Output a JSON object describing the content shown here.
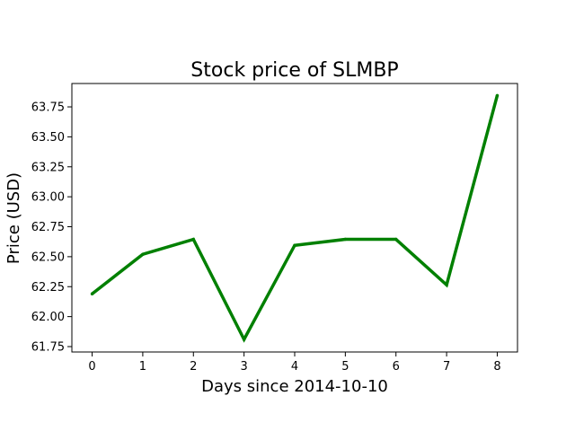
{
  "chart_data": {
    "type": "line",
    "title": "Stock price of SLMBP",
    "xlabel": "Days since 2014-10-10",
    "ylabel": "Price (USD)",
    "x": [
      0,
      1,
      2,
      3,
      4,
      5,
      6,
      7,
      8
    ],
    "series": [
      {
        "values": [
          62.19,
          62.52,
          62.645,
          61.81,
          62.595,
          62.645,
          62.645,
          62.265,
          63.845
        ],
        "color": "#008000"
      }
    ],
    "xticks": [
      "0",
      "1",
      "2",
      "3",
      "4",
      "5",
      "6",
      "7",
      "8"
    ],
    "yticks": [
      "61.75",
      "62.00",
      "62.25",
      "62.50",
      "62.75",
      "63.00",
      "63.25",
      "63.50",
      "63.75"
    ],
    "xlim": [
      -0.4,
      8.4
    ],
    "ylim": [
      61.705,
      63.945
    ],
    "grid": false,
    "legend": false
  }
}
